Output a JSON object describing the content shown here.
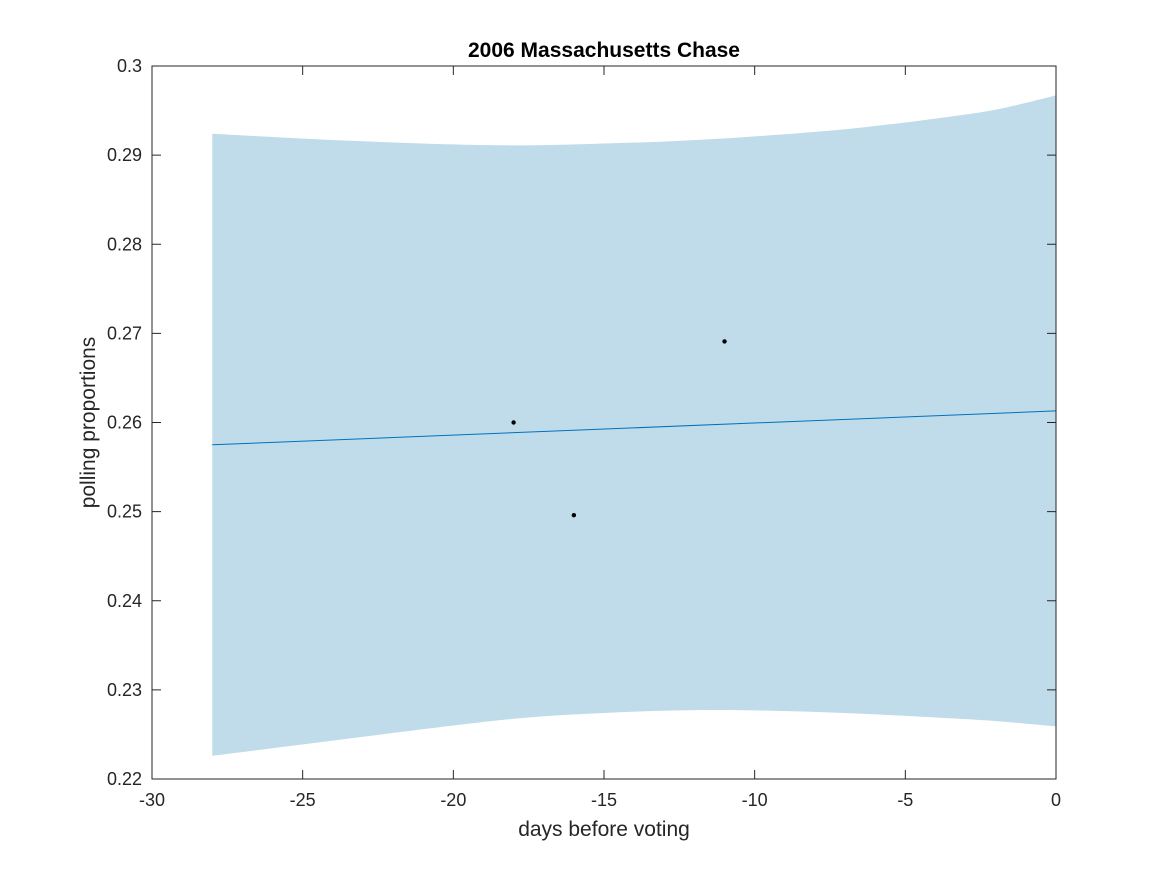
{
  "chart_data": {
    "type": "line",
    "title": "2006 Massachusetts Chase",
    "xlabel": "days before voting",
    "ylabel": "polling proportions",
    "xlim": [
      -30,
      0
    ],
    "ylim": [
      0.22,
      0.3
    ],
    "x_ticks": [
      -30,
      -25,
      -20,
      -15,
      -10,
      -5,
      0
    ],
    "x_tick_labels": [
      "-30",
      "-25",
      "-20",
      "-15",
      "-10",
      "-5",
      "0"
    ],
    "y_ticks": [
      0.22,
      0.23,
      0.24,
      0.25,
      0.26,
      0.27,
      0.28,
      0.29,
      0.3
    ],
    "y_tick_labels": [
      "0.22",
      "0.23",
      "0.24",
      "0.25",
      "0.26",
      "0.27",
      "0.28",
      "0.29",
      "0.3"
    ],
    "grid": false,
    "band": {
      "color": "#c0dcea",
      "x": [
        -28,
        -24,
        -20,
        -17.5,
        -15,
        -12.5,
        -10,
        -7,
        -4,
        -2,
        0
      ],
      "upper": [
        0.2924,
        0.2917,
        0.2912,
        0.2911,
        0.2913,
        0.2916,
        0.2921,
        0.2929,
        0.2941,
        0.2951,
        0.2967
      ],
      "lower": [
        0.2226,
        0.2243,
        0.226,
        0.2269,
        0.2274,
        0.2277,
        0.2277,
        0.2274,
        0.2269,
        0.2265,
        0.2259
      ]
    },
    "series": [
      {
        "color": "#0072bd",
        "x": [
          -28,
          0
        ],
        "y": [
          0.2575,
          0.2613
        ]
      }
    ],
    "points": {
      "color": "#000000",
      "x": [
        -18,
        -16,
        -11
      ],
      "y": [
        0.26,
        0.2496,
        0.2691
      ]
    }
  }
}
